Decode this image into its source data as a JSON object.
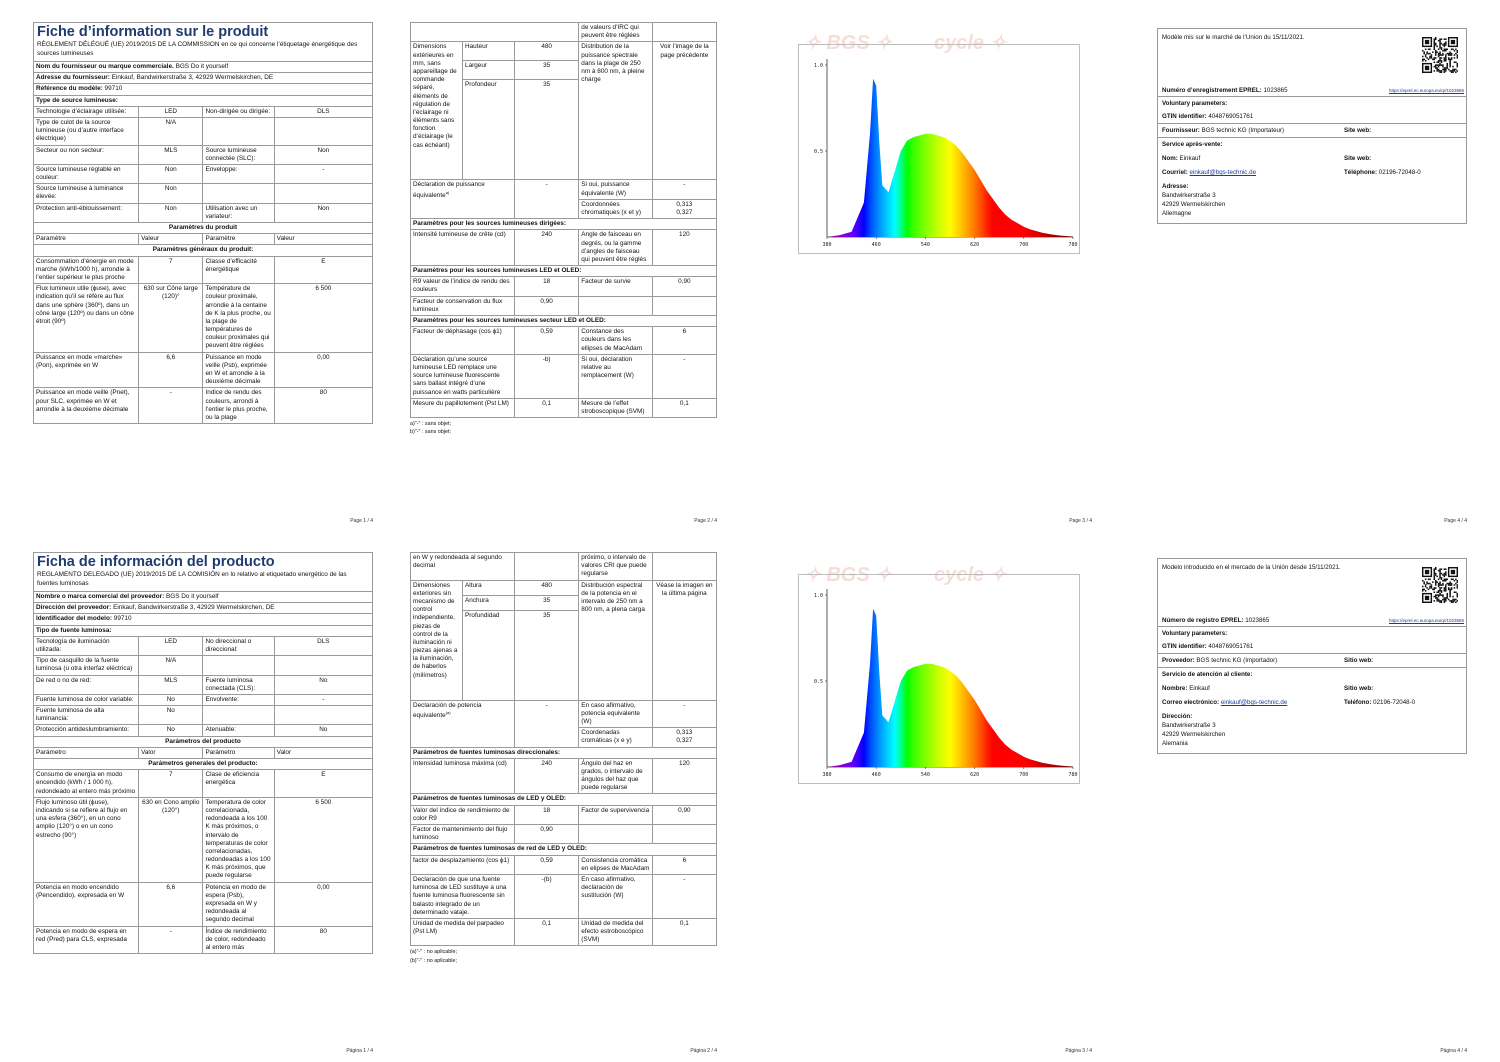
{
  "fr": {
    "p1": {
      "title": "Fiche d’information sur le produit",
      "regulation": "RÈGLEMENT DÉLÉGUÉ (UE) 2019/2015 DE LA COMMISSION en ce qui concerne l’étiquetage énergétique des sources lumineuses",
      "supplier_label": "Nom du fournisseur ou marque commerciale.",
      "supplier_value": "BGS Do it yourself",
      "address_label": "Adresse du fournisseur:",
      "address_value": "Einkauf, Bandwirkerstraße 3, 42929 Wermelskirchen, DE",
      "model_label": "Référence du modèle:",
      "model_value": "99710",
      "type_section": "Type de source lumineuse:",
      "rows": [
        [
          "Technologie d’éclairage utilisée:",
          "LED",
          "Non-dirigée ou dirigée:",
          "DLS"
        ],
        [
          "Type de culot de la source lumineuse (ou d’autre interface électrique)",
          "N/A",
          "",
          ""
        ],
        [
          "Secteur ou non secteur:",
          "MLS",
          "Source lumineuse connectée (SLC):",
          "Non"
        ],
        [
          "Source lumineuse réglable en couleur:",
          "Non",
          "Enveloppe:",
          "-"
        ],
        [
          "Source lumineuse à luminance élevée:",
          "Non",
          "",
          ""
        ],
        [
          "Protection anti-éblouissement:",
          "Non",
          "Utilisation avec un variateur:",
          "Non"
        ]
      ],
      "params_section": "Paramètres du produit",
      "params_head": [
        "Paramètre",
        "Valeur",
        "Paramètre",
        "Valeur"
      ],
      "general_section": "Paramètres généraux du produit:",
      "general_rows": [
        [
          "Consommation d’énergie en mode marche (kWh/1000 h), arrondie à l’entier supérieur le plus proche",
          "7",
          "Classe d’efficacité énergétique",
          "E"
        ],
        [
          "Flux lumineux utile (ɸuse), avec indication qu’il se réfère au flux dans une sphère (360º), dans un cône large (120º) ou dans un cône étroit (90º)",
          "630 sur Cône large (120)°",
          "Température de couleur proximale, arrondie à la centaine de K la plus proche, ou la plage de températures de couleur proximales qui peuvent être réglées",
          "6 500"
        ],
        [
          "Puissance en mode «marche» (Pon), exprimée en W",
          "6,6",
          "Puissance en mode veille (Psb), exprimée en W et arrondie à la deuxième décimale",
          "0,00"
        ],
        [
          "Puissance en mode veille (Pnet), pour SLC, exprimée en W et arrondie à la deuxième décimale",
          "-",
          "Indice de rendu des couleurs, arrondi à l’entier le plus proche, ou la plage",
          "80"
        ]
      ],
      "page": "Page 1 / 4"
    },
    "p2": {
      "top_right": "de valeurs d’IRC qui peuvent être réglées",
      "dim_label": "Dimensions extérieures en mm, sans appareillage de commande séparé, éléments de régulation de l’éclairage ni éléments sans fonction d’éclairage (le cas échéant)",
      "dims": [
        [
          "Hauteur",
          "480"
        ],
        [
          "Largeur",
          "35"
        ],
        [
          "Profondeur",
          "35"
        ]
      ],
      "spd_label": "Distribution de la puissance spectrale dans la plage de 250 nm à 800 nm, à pleine charge",
      "spd_value": "Voir l’image de la page précédente",
      "equiv_label": "Déclaration de puissance équivalente",
      "equiv_sup": "a)",
      "equiv_value": "-",
      "equiv2_label": "Si oui, puissance équivalente (W)",
      "equiv2_value": "-",
      "chroma_label": "Coordonnées chromatiques (x et y)",
      "chroma_value": "0,313",
      "chroma_value2": "0,327",
      "directed_section": "Paramètres pour les sources lumineuses dirigées:",
      "directed_rows": [
        [
          "Intensité lumineuse de crête (cd)",
          "240",
          "Angle de faisceau en degrés, ou la gamme d’angles de faisceau qui peuvent être réglés",
          "120"
        ]
      ],
      "led_section": "Paramètres pour les sources lumineuses LED et OLED:",
      "led_rows": [
        [
          "R9 valeur de l’indice de rendu des couleurs",
          "18",
          "Facteur de survie",
          "0,90"
        ],
        [
          "Facteur de conservation du flux lumineux",
          "0,90",
          "",
          ""
        ]
      ],
      "mains_section": "Paramètres pour les sources lumineuses secteur LED et OLED:",
      "mains_rows": [
        [
          "Facteur de déphasage (cos ɸ1)",
          "0,59",
          "Constance des couleurs dans les ellipses de MacAdam",
          "6"
        ],
        [
          "Déclaration qu’une source lumineuse LED remplace une source lumineuse fluorescente sans ballast intégré d’une puissance en watts particulière",
          "-b)",
          "Si oui, déclaration relative au remplacement (W)",
          "-"
        ],
        [
          "Mesure du papillotement (Pst LM)",
          "0,1",
          "Mesure de l’effet stroboscopique (SVM)",
          "0,1"
        ]
      ],
      "fn_a": "a)\"-\" : sans objet;",
      "fn_b": "b)\"-\" : sans objet;",
      "page": "Page 2 / 4"
    },
    "p3": {
      "page": "Page 3 / 4"
    },
    "p4": {
      "market": "Modèle mis sur le marché de l’Union du 15/11/2021.",
      "eprel_label": "Numéro d’enregistrement EPREL:",
      "eprel_value": "1023865",
      "eprel_link": "https://eprel.ec.europa.eu/qr/1023865",
      "voluntary": "Voluntary parameters:",
      "gtin_label": "GTIN identifier:",
      "gtin_value": "4048769051761",
      "supplier_label": "Fournisseur:",
      "supplier_value": "BGS technic KG (Importateur)",
      "web_label": "Site web:",
      "service": "Service après-vente:",
      "name_label": "Nom:",
      "name_value": "Einkauf",
      "web2_label": "Site web:",
      "mail_label": "Courriel:",
      "mail_value": "einkauf@bgs-technic.de",
      "phone_label": "Téléphone:",
      "phone_value": "02196-72048-0",
      "addr_label": "Adresse:",
      "addr_lines": [
        "Bandwirkerstraße 3",
        "42929 Wermelskirchen",
        "Allemagne"
      ],
      "page": "Page 4 / 4"
    }
  },
  "es": {
    "p1": {
      "title": "Ficha de información del producto",
      "regulation": "REGLAMENTO DELEGADO (UE) 2019/2015 DE LA COMISIÓN en lo relativo al etiquetado energético de las fuentes luminosas",
      "supplier_label": "Nombre o marca comercial del proveedor:",
      "supplier_value": "BGS Do it yourself",
      "address_label": "Dirección del proveedor:",
      "address_value": "Einkauf, Bandwirkerstraße 3, 42929 Wermelskirchen, DE",
      "model_label": "Identificador del modelo:",
      "model_value": "99710",
      "type_section": "Tipo de fuente luminosa:",
      "rows": [
        [
          "Tecnología de iluminación utilizada:",
          "LED",
          "No direccional o direccional:",
          "DLS"
        ],
        [
          "Tipo de casquillo de la fuente luminosa (u otra interfaz eléctrica)",
          "N/A",
          "",
          ""
        ],
        [
          "De red o no de red:",
          "MLS",
          "Fuente luminosa conectada (CLS):",
          "No"
        ],
        [
          "Fuente luminosa de color variable:",
          "No",
          "Envolvente:",
          "-"
        ],
        [
          "Fuente luminosa de alta luminancia:",
          "No",
          "",
          ""
        ],
        [
          "Protección antideslumbramiento:",
          "No",
          "Atenuable:",
          "No"
        ]
      ],
      "params_section": "Parámetros del producto",
      "params_head": [
        "Parámetro",
        "Valor",
        "Parámetro",
        "Valor"
      ],
      "general_section": "Parámetros generales del producto:",
      "general_rows": [
        [
          "Consumo de energía en modo encendido (kWh / 1 000 h), redondeado al entero más próximo",
          "7",
          "Clase de eficiencia energética",
          "E"
        ],
        [
          "Flujo luminoso útil (ɸuse), indicando si se refiere al flujo en una esfera (360°), en un cono amplio (120°) o en un cono estrecho (90°)",
          "630 en Cono amplio (120°)",
          "Temperatura de color correlacionada, redondeada a los 100 K más próximos, o intervalo de temperaturas de color correlacionadas, redondeadas a los 100 K más próximos, que puede regularse",
          "6 500"
        ],
        [
          "Potencia en modo encendido (Pencendido), expresada en W",
          "6,6",
          "Potencia en modo de espera (Psb), expresada en W y redondeada al segundo decimal",
          "0,00"
        ],
        [
          "Potencia en modo de espera en red (Pred) para CLS, expresada",
          "-",
          "Índice de rendimiento de color, redondeado al entero más",
          "80"
        ]
      ],
      "page": "Página 1 / 4"
    },
    "p2": {
      "top_left": "en W y redondeada al segundo decimal",
      "top_right": "próximo, o intervalo de valores CRI que puede regularse",
      "dim_label": "Dimensiones exteriores sin mecanismo de control independiente, piezas de control de la iluminación ni piezas ajenas a la iluminación, de haberlos (milímetros)",
      "dims": [
        [
          "Altura",
          "480"
        ],
        [
          "Anchura",
          "35"
        ],
        [
          "Profundidad",
          "35"
        ]
      ],
      "spd_label": "Distribución espectral de la potencia en el intervalo de 250 nm a 800 nm, a plena carga",
      "spd_value": "Véase la imagen en la última página",
      "equiv_label": "Declaración de potencia equivalente",
      "equiv_sup": "(a)",
      "equiv_value": "-",
      "equiv2_label": "En caso afirmativo, potencia equivalente (W)",
      "equiv2_value": "-",
      "chroma_label": "Coordenadas cromáticas (x e y)",
      "chroma_value": "0,313",
      "chroma_value2": "0,327",
      "directed_section": "Parámetros de fuentes luminosas direccionales:",
      "directed_rows": [
        [
          "Intensidad luminosa máxima (cd)",
          "240",
          "Ángulo del haz en grados, o intervalo de ángulos del haz que puede regularse",
          "120"
        ]
      ],
      "led_section": "Parámetros de fuentes luminosas de LED y OLED:",
      "led_rows": [
        [
          "Valor del índice de rendimiento de color R9",
          "18",
          "Factor de supervivencia",
          "0,90"
        ],
        [
          "Factor de mantenimiento del flujo luminoso",
          "0,90",
          "",
          ""
        ]
      ],
      "mains_section": "Parámetros de fuentes luminosas de red de LED y OLED:",
      "mains_rows": [
        [
          "factor de desplazamiento (cos ɸ1)",
          "0,59",
          "Consistencia cromática en elipses de MacAdam",
          "6"
        ],
        [
          "Declaración de que una fuente luminosa de LED sustituye a una fuente luminosa fluorescente sin balasto integrado de un determinado vataje.",
          "-(b)",
          "En caso afirmativo, declaración de sustitución (W)",
          "-"
        ],
        [
          "Unidad de medida del parpadeo (Pst LM)",
          "0,1",
          "Unidad de medida del efecto estroboscópico (SVM)",
          "0,1"
        ]
      ],
      "fn_a": "(a)\"-\" : no aplicable;",
      "fn_b": "(b)\"-\" : no aplicable;",
      "page": "Página 2 / 4"
    },
    "p3": {
      "page": "Página 3 / 4"
    },
    "p4": {
      "market": "Modelo introducido en el mercado de la Unión desde 15/11/2021.",
      "eprel_label": "Número de registro EPREL:",
      "eprel_value": "1023865",
      "eprel_link": "https://eprel.ec.europa.eu/qr/1023865",
      "voluntary": "Voluntary parameters:",
      "gtin_label": "GTIN identifier:",
      "gtin_value": "4048769051761",
      "supplier_label": "Proveedor:",
      "supplier_value": "BGS technic KG (Importador)",
      "web_label": "Sitio web:",
      "service": "Servicio de atención al cliente:",
      "name_label": "Nombre:",
      "name_value": "Einkauf",
      "web2_label": "Sitio web:",
      "mail_label": "Correo electrónico:",
      "mail_value": "einkauf@bgs-technic.de",
      "phone_label": "Teléfono:",
      "phone_value": "02196-72048-0",
      "addr_label": "Dirección:",
      "addr_lines": [
        "Bandwirkerstraße 3",
        "42929 Wermelskirchen",
        "Alemania"
      ],
      "page": "Página 4 / 4"
    }
  },
  "chart_data": [
    {
      "type": "area",
      "x": [
        380,
        400,
        420,
        440,
        450,
        455,
        460,
        465,
        470,
        480,
        490,
        500,
        510,
        520,
        530,
        540,
        550,
        560,
        570,
        580,
        590,
        600,
        610,
        620,
        630,
        640,
        650,
        660,
        670,
        680,
        690,
        700,
        710,
        720,
        730,
        740,
        750,
        760,
        770,
        780
      ],
      "y": [
        0.0,
        0.01,
        0.03,
        0.2,
        0.6,
        0.92,
        0.88,
        0.55,
        0.3,
        0.26,
        0.38,
        0.5,
        0.56,
        0.58,
        0.59,
        0.6,
        0.6,
        0.59,
        0.58,
        0.56,
        0.53,
        0.49,
        0.44,
        0.39,
        0.33,
        0.27,
        0.22,
        0.17,
        0.13,
        0.1,
        0.08,
        0.06,
        0.045,
        0.035,
        0.025,
        0.018,
        0.012,
        0.008,
        0.005,
        0.003
      ],
      "xticks": [
        380,
        460,
        540,
        620,
        700,
        780
      ],
      "yticks": [
        "0.5",
        "1.0"
      ],
      "xlim": [
        380,
        780
      ],
      "ylim": [
        0,
        1.0
      ],
      "grid": false
    },
    {
      "type": "area",
      "x": [
        380,
        400,
        420,
        440,
        450,
        455,
        460,
        465,
        470,
        480,
        490,
        500,
        510,
        520,
        530,
        540,
        550,
        560,
        570,
        580,
        590,
        600,
        610,
        620,
        630,
        640,
        650,
        660,
        670,
        680,
        690,
        700,
        710,
        720,
        730,
        740,
        750,
        760,
        770,
        780
      ],
      "y": [
        0.0,
        0.01,
        0.03,
        0.2,
        0.6,
        0.92,
        0.88,
        0.55,
        0.3,
        0.26,
        0.38,
        0.5,
        0.56,
        0.58,
        0.59,
        0.6,
        0.6,
        0.59,
        0.58,
        0.56,
        0.53,
        0.49,
        0.44,
        0.39,
        0.33,
        0.27,
        0.22,
        0.17,
        0.13,
        0.1,
        0.08,
        0.06,
        0.045,
        0.035,
        0.025,
        0.018,
        0.012,
        0.008,
        0.005,
        0.003
      ],
      "xticks": [
        380,
        460,
        540,
        620,
        700,
        780
      ],
      "yticks": [
        "0.5",
        "1.0"
      ],
      "xlim": [
        380,
        780
      ],
      "ylim": [
        0,
        1.0
      ],
      "grid": false
    }
  ],
  "colors": {
    "title": "#1f3b6f",
    "link": "#1a3c9a",
    "border": "#9a9a9a"
  }
}
